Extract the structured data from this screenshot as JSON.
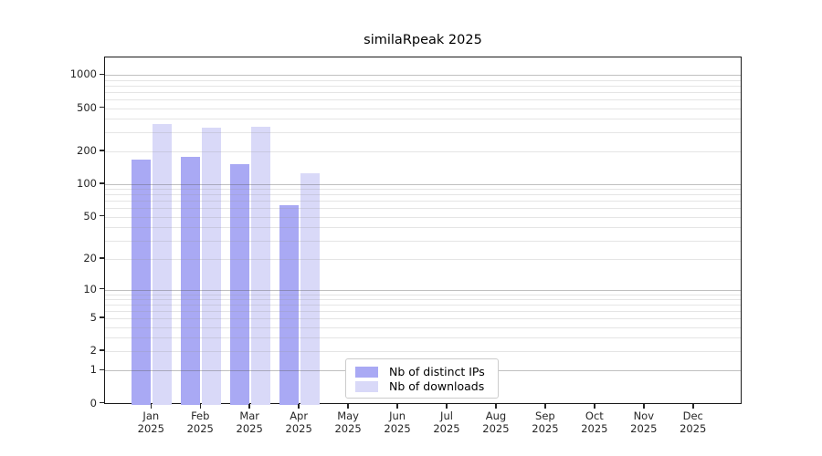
{
  "chart_data": {
    "type": "bar",
    "title": "similaRpeak 2025",
    "xlabel": "",
    "ylabel": "",
    "year_label": "2025",
    "categories": [
      "Jan",
      "Feb",
      "Mar",
      "Apr",
      "May",
      "Jun",
      "Jul",
      "Aug",
      "Sep",
      "Oct",
      "Nov",
      "Dec"
    ],
    "series": [
      {
        "name": "Nb of distinct IPs",
        "color": "#a9a9f4",
        "values": [
          170,
          180,
          152,
          64,
          null,
          null,
          null,
          null,
          null,
          null,
          null,
          null
        ]
      },
      {
        "name": "Nb of downloads",
        "color": "#d9d9f8",
        "values": [
          360,
          328,
          336,
          125,
          null,
          null,
          null,
          null,
          null,
          null,
          null,
          null
        ]
      }
    ],
    "y_scale": "log1p",
    "y_ticks": [
      0,
      1,
      2,
      5,
      10,
      20,
      50,
      100,
      200,
      500,
      1000
    ],
    "ylim": [
      0,
      1200
    ],
    "grid": "horizontal",
    "grid_major": [
      1,
      10,
      100,
      1000
    ],
    "grid_minor": [
      2,
      3,
      4,
      5,
      6,
      7,
      8,
      9,
      20,
      30,
      40,
      50,
      60,
      70,
      80,
      90,
      200,
      300,
      400,
      500,
      600,
      700,
      800,
      900
    ],
    "legend_position": "inside bottom-center",
    "accent_colors": {
      "spine": "#1a1a1a",
      "tick_text": "#262626"
    }
  }
}
